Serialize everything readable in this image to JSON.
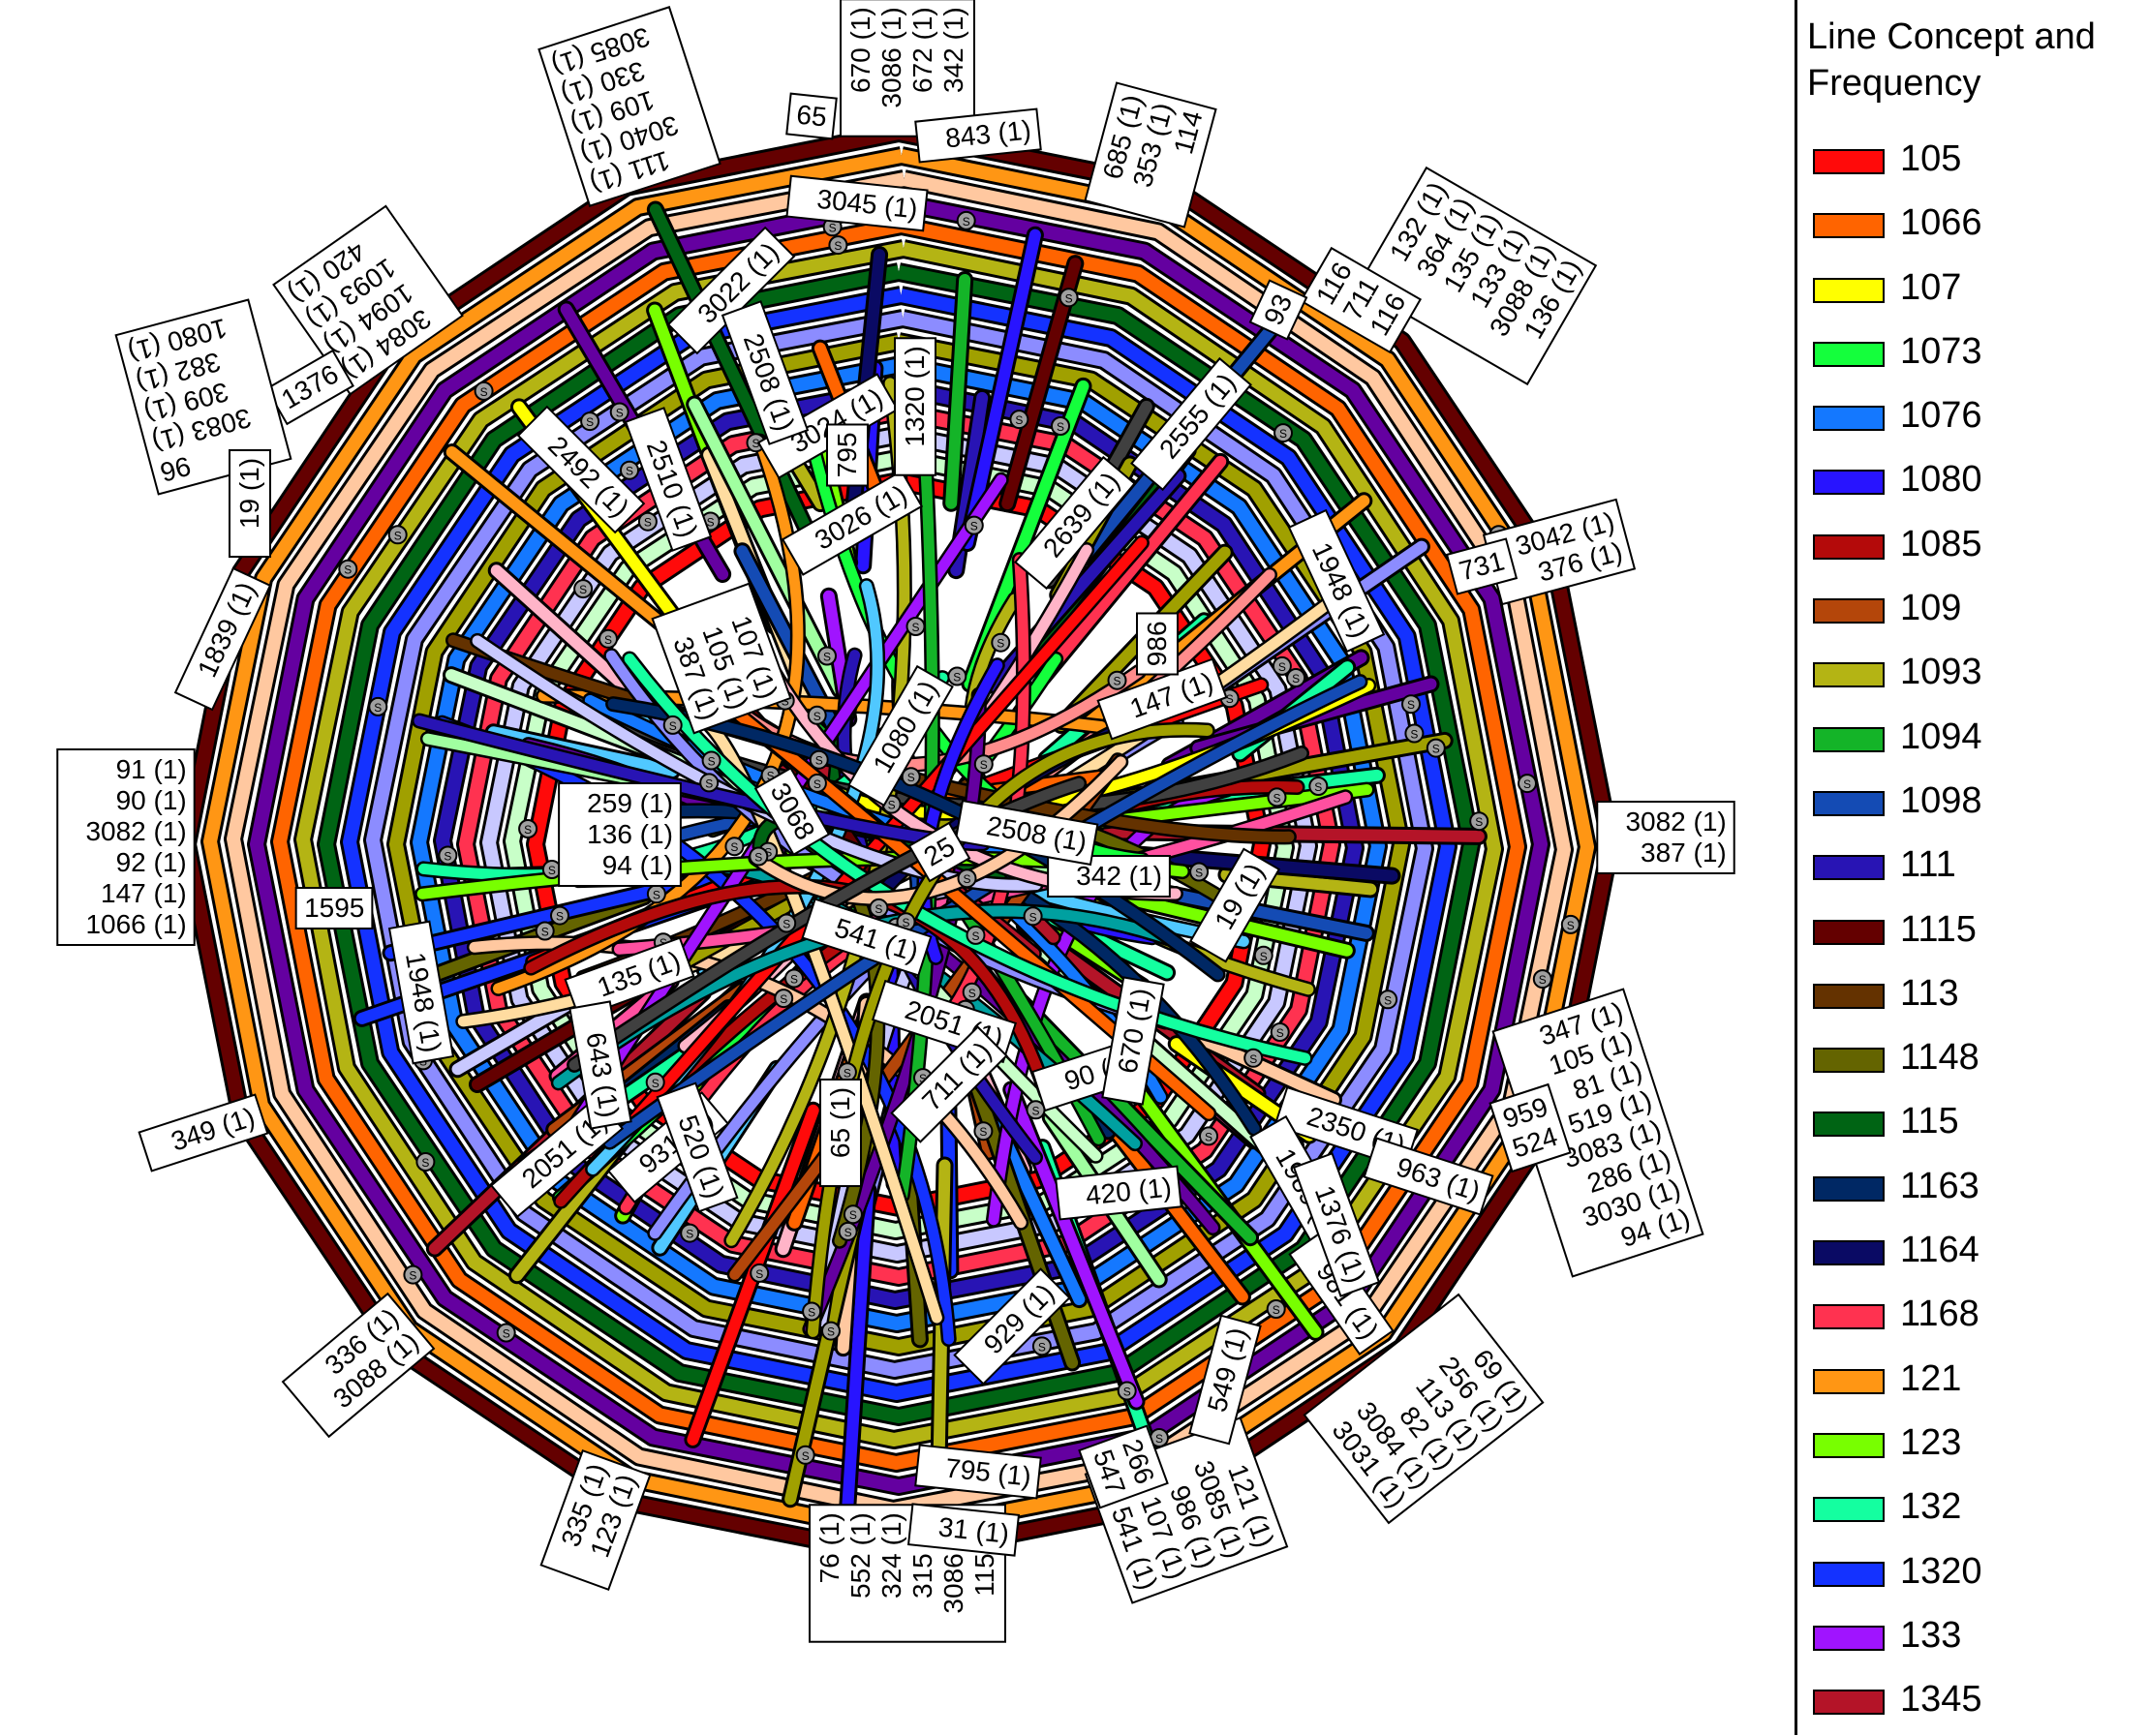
{
  "legend": {
    "title": "Line Concept and\nFrequency",
    "items": [
      {
        "label": "105",
        "color": "#ff0a0a"
      },
      {
        "label": "1066",
        "color": "#ff6400"
      },
      {
        "label": "107",
        "color": "#ffff00"
      },
      {
        "label": "1073",
        "color": "#14ff3c"
      },
      {
        "label": "1076",
        "color": "#1478ff"
      },
      {
        "label": "1080",
        "color": "#2814ff"
      },
      {
        "label": "1085",
        "color": "#b40a0a"
      },
      {
        "label": "109",
        "color": "#b4460a"
      },
      {
        "label": "1093",
        "color": "#b4b414"
      },
      {
        "label": "1094",
        "color": "#14b428"
      },
      {
        "label": "1098",
        "color": "#144bb4"
      },
      {
        "label": "111",
        "color": "#2814b4"
      },
      {
        "label": "1115",
        "color": "#640000"
      },
      {
        "label": "113",
        "color": "#643200"
      },
      {
        "label": "1148",
        "color": "#646400"
      },
      {
        "label": "115",
        "color": "#006414"
      },
      {
        "label": "1163",
        "color": "#002864"
      },
      {
        "label": "1164",
        "color": "#0a0a64"
      },
      {
        "label": "1168",
        "color": "#ff3250"
      },
      {
        "label": "121",
        "color": "#ff9614"
      },
      {
        "label": "123",
        "color": "#78ff00"
      },
      {
        "label": "132",
        "color": "#14ffa0"
      },
      {
        "label": "1320",
        "color": "#1432ff"
      },
      {
        "label": "133",
        "color": "#a014ff"
      },
      {
        "label": "1345",
        "color": "#b41428"
      }
    ]
  },
  "station_labels": [
    {
      "lines": [
        "670 (1)",
        "3086 (1)",
        "672 (1)",
        "342 (1)"
      ],
      "rotate": -90
    },
    {
      "lines": [
        "843 (1)"
      ],
      "rotate": -6
    },
    {
      "lines": [
        "3045 (1)"
      ],
      "rotate": 6
    },
    {
      "lines": [
        "65"
      ],
      "rotate": 6
    },
    {
      "lines": [
        "111 (1)",
        "3040 (1)",
        "109 (1)",
        "330 (1)",
        "3085 (1)"
      ],
      "rotate": 162
    },
    {
      "lines": [
        "685 (1)",
        "353 (1)",
        "114"
      ],
      "rotate": -75
    },
    {
      "lines": [
        "132 (1)",
        "364 (1)",
        "135 (1)",
        "133 (1)",
        "3088 (1)",
        "136 (1)"
      ],
      "rotate": -60
    },
    {
      "lines": [
        "116",
        "711",
        "116"
      ],
      "rotate": -60
    },
    {
      "lines": [
        "93"
      ],
      "rotate": -65
    },
    {
      "lines": [
        "3084 (1)",
        "1094 (1)",
        "1093 (1)",
        "420 (1)"
      ],
      "rotate": 145
    },
    {
      "lines": [
        "1376"
      ],
      "rotate": -30
    },
    {
      "lines": [
        "96",
        "3083 (1)",
        "309 (1)",
        "382 (1)",
        "1080 (1)"
      ],
      "rotate": 165
    },
    {
      "lines": [
        "19 (1)"
      ],
      "rotate": -90
    },
    {
      "lines": [
        "1839 (1)"
      ],
      "rotate": -65
    },
    {
      "lines": [
        "3042 (1)",
        "376 (1)"
      ],
      "rotate": -15
    },
    {
      "lines": [
        "731"
      ],
      "rotate": -15
    },
    {
      "lines": [
        "91 (1)",
        "90 (1)",
        "3082 (1)",
        "92 (1)",
        "147 (1)",
        "1066 (1)"
      ],
      "rotate": 0
    },
    {
      "lines": [
        "3082 (1)",
        "387 (1)"
      ],
      "rotate": 0
    },
    {
      "lines": [
        "1595"
      ],
      "rotate": 0
    },
    {
      "lines": [
        "347 (1)",
        "105 (1)",
        "81 (1)",
        "519 (1)",
        "3083 (1)",
        "286 (1)",
        "3030 (1)",
        "94 (1)"
      ],
      "rotate": -18
    },
    {
      "lines": [
        "959",
        "524"
      ],
      "rotate": -18
    },
    {
      "lines": [
        "349 (1)"
      ],
      "rotate": -18
    },
    {
      "lines": [
        "336 (1)",
        "3088 (1)"
      ],
      "rotate": -40
    },
    {
      "lines": [
        "335 (1)",
        "123 (1)"
      ],
      "rotate": -70
    },
    {
      "lines": [
        "76 (1)",
        "552 (1)",
        "324 (1)",
        "315 (1)",
        "3086 (1)",
        "115 (1)"
      ],
      "rotate": -90
    },
    {
      "lines": [
        "31 (1)"
      ],
      "rotate": 6
    },
    {
      "lines": [
        "795 (1)"
      ],
      "rotate": 6
    },
    {
      "lines": [
        "121 (1)",
        "3085 (1)",
        "986 (1)",
        "107 (1)",
        "541 (1)"
      ],
      "rotate": 70
    },
    {
      "lines": [
        "266",
        "547"
      ],
      "rotate": 70
    },
    {
      "lines": [
        "69 (1)",
        "256 (1)",
        "113 (1)",
        "82 (1)",
        "3084 (1)",
        "3031 (1)"
      ],
      "rotate": 52
    },
    {
      "lines": [
        "259 (1)",
        "136 (1)",
        "94 (1)"
      ],
      "rotate": 0
    },
    {
      "lines": [
        "342 (1)"
      ],
      "rotate": 0
    },
    {
      "lines": [
        "2350 (1)"
      ],
      "rotate": 18
    },
    {
      "lines": [
        "963 (1)"
      ],
      "rotate": 18
    },
    {
      "lines": [
        "420 (1)"
      ],
      "rotate": -6
    },
    {
      "lines": [
        "929 (1)"
      ],
      "rotate": -45
    },
    {
      "lines": [
        "549 (1)"
      ],
      "rotate": -75
    },
    {
      "lines": [
        "2051 (1)"
      ],
      "rotate": 18
    },
    {
      "lines": [
        "2051 (1)"
      ],
      "rotate": -40
    },
    {
      "lines": [
        "931 (1)"
      ],
      "rotate": -40
    },
    {
      "lines": [
        "1948 (1)"
      ],
      "rotate": 65
    },
    {
      "lines": [
        "1948 (1)"
      ],
      "rotate": 80
    },
    {
      "lines": [
        "135 (1)"
      ],
      "rotate": -20
    },
    {
      "lines": [
        "147 (1)"
      ],
      "rotate": -20
    },
    {
      "lines": [
        "2555 (1)"
      ],
      "rotate": -50
    },
    {
      "lines": [
        "2639 (1)"
      ],
      "rotate": -50
    },
    {
      "lines": [
        "2492 (1)"
      ],
      "rotate": 45
    },
    {
      "lines": [
        "2510 (1)"
      ],
      "rotate": 70
    },
    {
      "lines": [
        "3022 (1)"
      ],
      "rotate": -45
    },
    {
      "lines": [
        "3024 (1)"
      ],
      "rotate": -30
    },
    {
      "lines": [
        "3026 (1)"
      ],
      "rotate": -30
    },
    {
      "lines": [
        "541 (1)"
      ],
      "rotate": 18
    },
    {
      "lines": [
        "19 (1)"
      ],
      "rotate": -60
    },
    {
      "lines": [
        "90 (1)"
      ],
      "rotate": -18
    },
    {
      "lines": [
        "711 (1)"
      ],
      "rotate": -45
    },
    {
      "lines": [
        "65 (1)"
      ],
      "rotate": -90
    },
    {
      "lines": [
        "1989 (1)"
      ],
      "rotate": 60
    },
    {
      "lines": [
        "981 (1)"
      ],
      "rotate": 55
    },
    {
      "lines": [
        "2508 (1)"
      ],
      "rotate": 70
    },
    {
      "lines": [
        "1376 (1)"
      ],
      "rotate": 70
    },
    {
      "lines": [
        "643 (1)"
      ],
      "rotate": 80
    },
    {
      "lines": [
        "520 (1)"
      ],
      "rotate": 70
    },
    {
      "lines": [
        "795"
      ],
      "rotate": -90
    },
    {
      "lines": [
        "1320 (1)"
      ],
      "rotate": -90
    },
    {
      "lines": [
        "107 (1)",
        "105 (1)",
        "387 (1)"
      ],
      "rotate": 70
    },
    {
      "lines": [
        "3068"
      ],
      "rotate": 60
    },
    {
      "lines": [
        "1080 (1)"
      ],
      "rotate": -60
    },
    {
      "lines": [
        "2508 (1)"
      ],
      "rotate": 10
    },
    {
      "lines": [
        "25"
      ],
      "rotate": -30
    },
    {
      "lines": [
        "670 (1)"
      ],
      "rotate": -80
    },
    {
      "lines": [
        "986"
      ],
      "rotate": -90
    }
  ]
}
